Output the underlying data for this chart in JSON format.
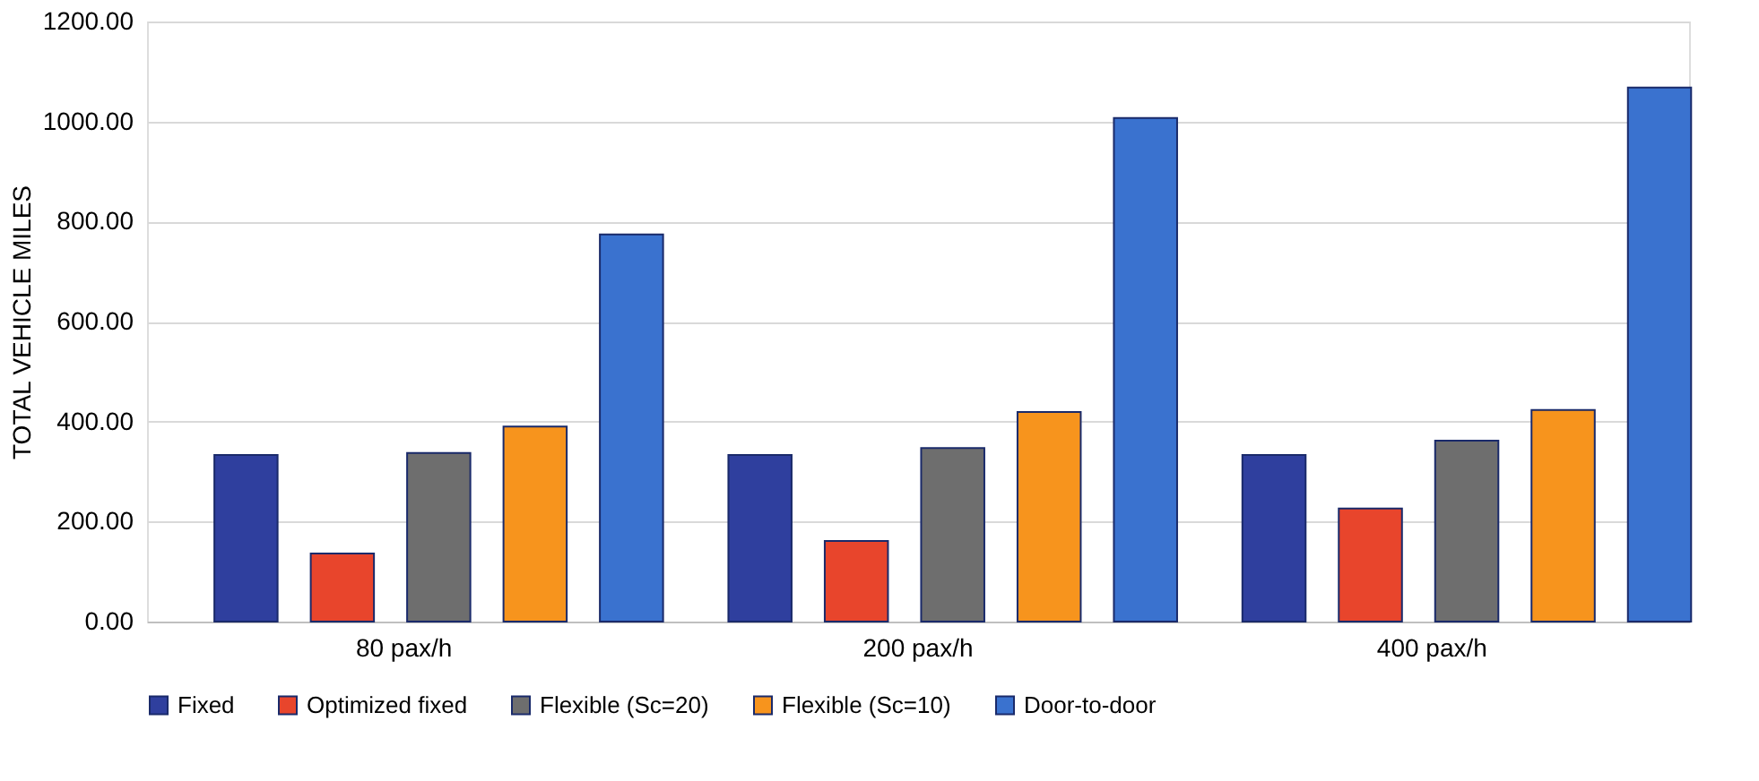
{
  "chart_data": {
    "type": "bar",
    "ylabel": "TOTAL VEHICLE MILES",
    "categories": [
      "80 pax/h",
      "200 pax/h",
      "400 pax/h"
    ],
    "series": [
      {
        "name": "Fixed",
        "color": "#2f3f9e",
        "values": [
          333,
          333,
          333
        ]
      },
      {
        "name": "Optimized fixed",
        "color": "#e8452c",
        "values": [
          136,
          161,
          226
        ]
      },
      {
        "name": "Flexible (Sc=20)",
        "color": "#6e6e6e",
        "values": [
          337,
          347,
          362
        ]
      },
      {
        "name": "Flexible (Sc=10)",
        "color": "#f7941d",
        "values": [
          390,
          419,
          423
        ]
      },
      {
        "name": "Door-to-door",
        "color": "#3a72cf",
        "values": [
          774,
          1007,
          1068
        ]
      }
    ],
    "ylim": [
      0,
      1200
    ],
    "yticks": [
      {
        "value": 0,
        "label": "0.00"
      },
      {
        "value": 200,
        "label": "200.00"
      },
      {
        "value": 400,
        "label": "400.00"
      },
      {
        "value": 600,
        "label": "600.00"
      },
      {
        "value": 800,
        "label": "800.00"
      },
      {
        "value": 1000,
        "label": "1000.00"
      },
      {
        "value": 1200,
        "label": "1200.00"
      }
    ],
    "grid": "y",
    "legend": "bottom"
  }
}
